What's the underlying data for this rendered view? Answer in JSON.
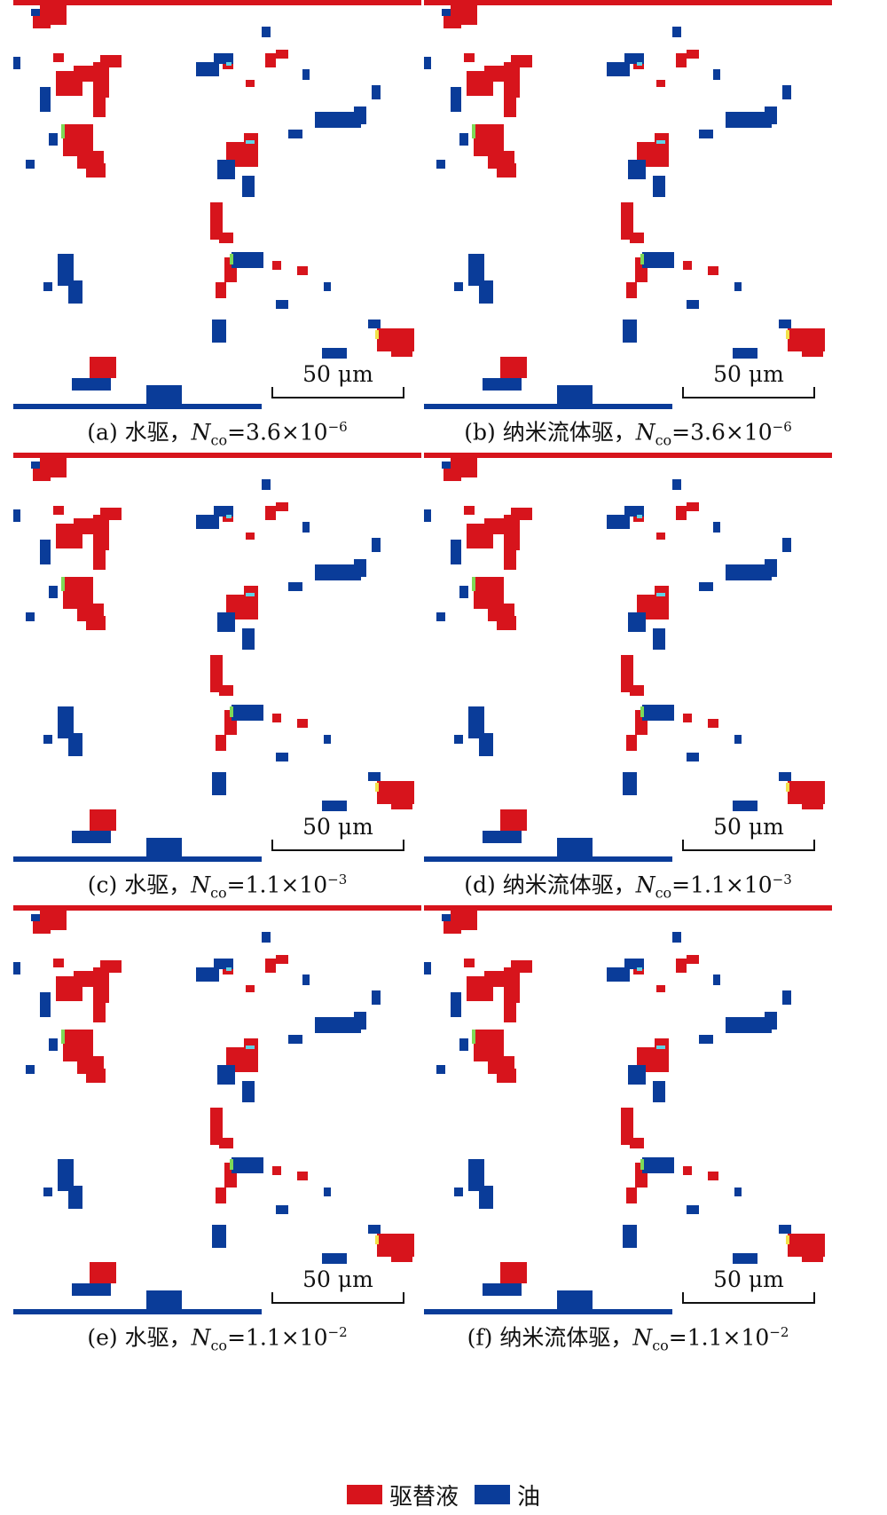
{
  "colors": {
    "displacing": "#d7141c",
    "oil": "#0a3c99",
    "interface_green": "#7ed957",
    "interface_cyan": "#5fd3e6",
    "interface_yellow": "#f2e24a"
  },
  "scale_bar_label": "50 μm",
  "panels": [
    {
      "id": "a",
      "prefix": "(a) 水驱，",
      "n_main": "N",
      "n_sub": "co",
      "value": "=3.6×10",
      "exponent": "−6"
    },
    {
      "id": "b",
      "prefix": "(b) 纳米流体驱，",
      "n_main": "N",
      "n_sub": "co",
      "value": "=3.6×10",
      "exponent": "−6"
    },
    {
      "id": "c",
      "prefix": "(c) 水驱，",
      "n_main": "N",
      "n_sub": "co",
      "value": "=1.1×10",
      "exponent": "−3"
    },
    {
      "id": "d",
      "prefix": "(d) 纳米流体驱，",
      "n_main": "N",
      "n_sub": "co",
      "value": "=1.1×10",
      "exponent": "−3"
    },
    {
      "id": "e",
      "prefix": "(e) 水驱，",
      "n_main": "N",
      "n_sub": "co",
      "value": "=1.1×10",
      "exponent": "−2"
    },
    {
      "id": "f",
      "prefix": "(f) 纳米流体驱，",
      "n_main": "N",
      "n_sub": "co",
      "value": "=1.1×10",
      "exponent": "−2"
    }
  ],
  "legend": [
    {
      "label": "驱替液",
      "color": "#d7141c"
    },
    {
      "label": "油",
      "color": "#0a3c99"
    }
  ]
}
